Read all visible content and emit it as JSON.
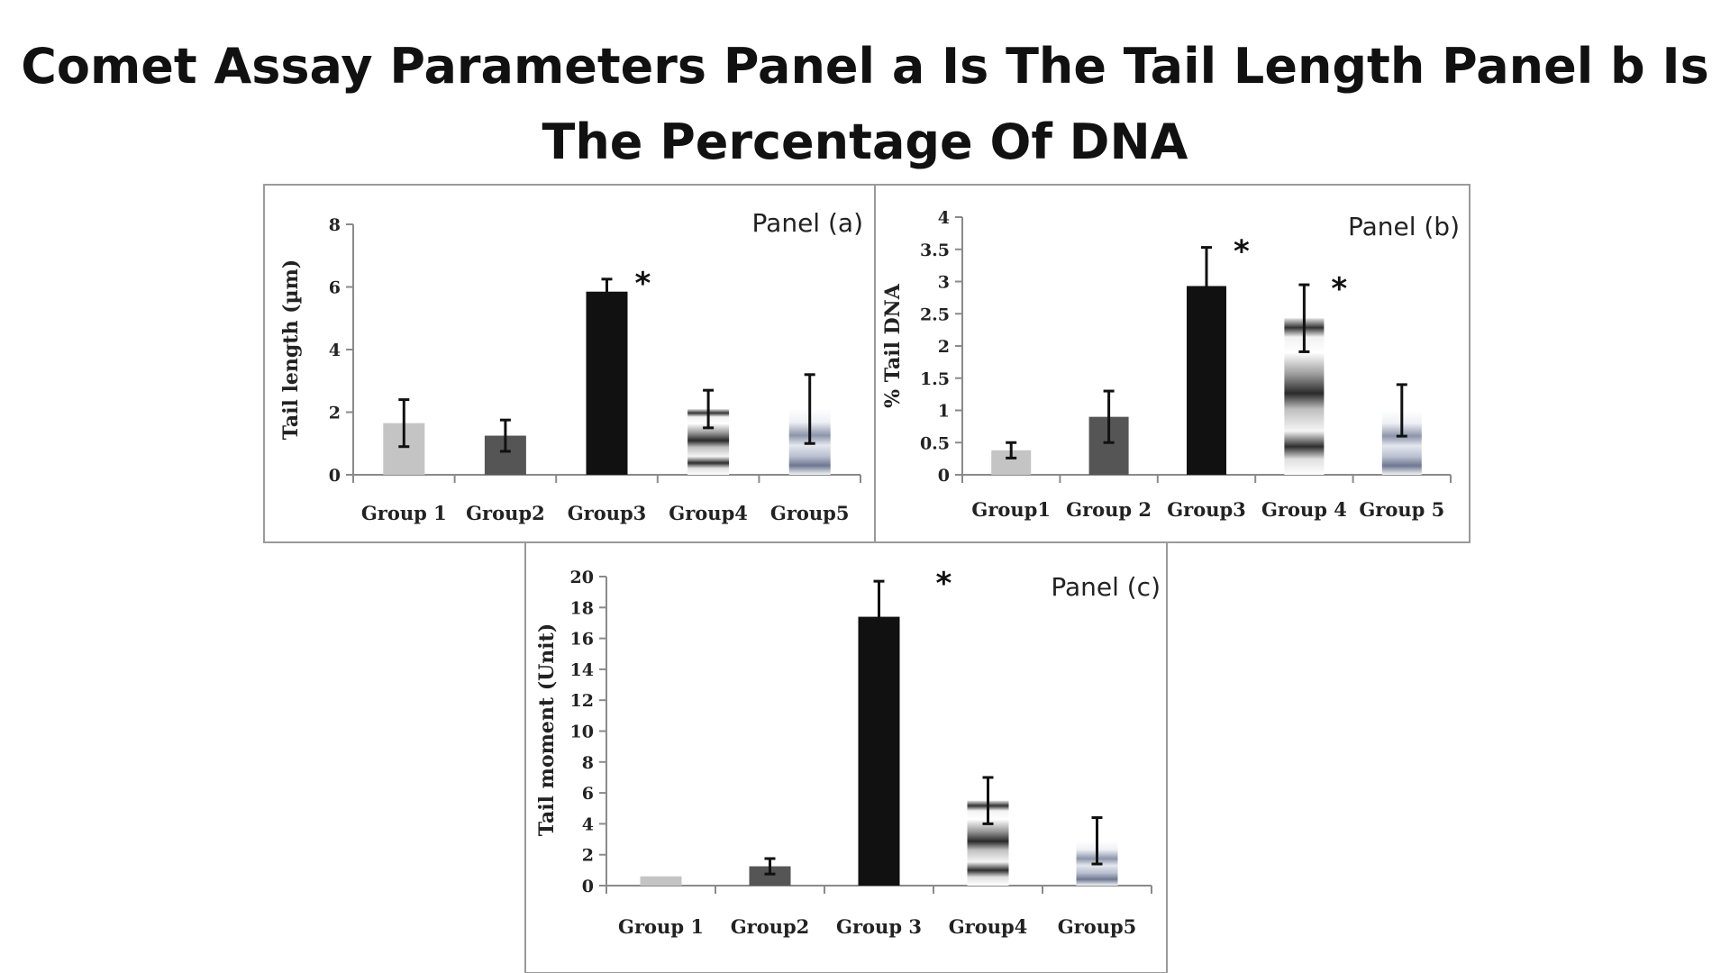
{
  "title": "Comet Assay Parameters Panel a Is The Tail Length Panel b Is The Percentage Of DNA",
  "chart_data": [
    {
      "type": "bar",
      "panel_label": "Panel (a)",
      "categories": [
        "Group 1",
        "Group2",
        "Group3",
        "Group4",
        "Group5"
      ],
      "values": [
        1.65,
        1.25,
        5.85,
        2.1,
        2.1
      ],
      "errors": [
        0.75,
        0.5,
        0.4,
        0.6,
        1.1
      ],
      "significant": [
        false,
        false,
        true,
        false,
        false
      ],
      "significance_marker": "*",
      "ylabel": "Tail length  (µm)",
      "ylim": [
        0,
        8
      ],
      "yticks": [
        "0",
        "2",
        "4",
        "6",
        "8"
      ],
      "ytick_values": [
        0,
        2,
        4,
        6,
        8
      ],
      "fills": [
        "#c4c4c4",
        "#555555",
        "#111111",
        "stripes-gray",
        "stripes-blue"
      ]
    },
    {
      "type": "bar",
      "panel_label": "Panel (b)",
      "categories": [
        "Group1",
        "Group 2",
        "Group3",
        "Group 4",
        "Group 5"
      ],
      "values": [
        0.38,
        0.9,
        2.93,
        2.43,
        1.0
      ],
      "errors": [
        0.12,
        0.4,
        0.6,
        0.52,
        0.4
      ],
      "significant": [
        false,
        false,
        true,
        true,
        false
      ],
      "significance_marker": "*",
      "ylabel": "% Tail DNA",
      "ylim": [
        0,
        4
      ],
      "yticks": [
        "0",
        "0.5",
        "1",
        "1.5",
        "2",
        "2.5",
        "3",
        "3.5",
        "4"
      ],
      "ytick_values": [
        0,
        0.5,
        1,
        1.5,
        2,
        2.5,
        3,
        3.5,
        4
      ],
      "fills": [
        "#c4c4c4",
        "#555555",
        "#111111",
        "stripes-gray",
        "stripes-blue"
      ]
    },
    {
      "type": "bar",
      "panel_label": "Panel (c)",
      "categories": [
        "Group 1",
        "Group2",
        "Group 3",
        "Group4",
        "Group5"
      ],
      "values": [
        0.6,
        1.25,
        17.4,
        5.5,
        2.9
      ],
      "errors": [
        0.0,
        0.5,
        2.3,
        1.5,
        1.5
      ],
      "significant": [
        false,
        false,
        true,
        false,
        false
      ],
      "significance_marker": "*",
      "ylabel": "Tail moment  (Unit)",
      "ylim": [
        0,
        20
      ],
      "yticks": [
        "0",
        "2",
        "4",
        "6",
        "8",
        "10",
        "12",
        "14",
        "16",
        "18",
        "20"
      ],
      "ytick_values": [
        0,
        2,
        4,
        6,
        8,
        10,
        12,
        14,
        16,
        18,
        20
      ],
      "fills": [
        "#c4c4c4",
        "#555555",
        "#111111",
        "stripes-gray",
        "stripes-blue"
      ]
    }
  ]
}
